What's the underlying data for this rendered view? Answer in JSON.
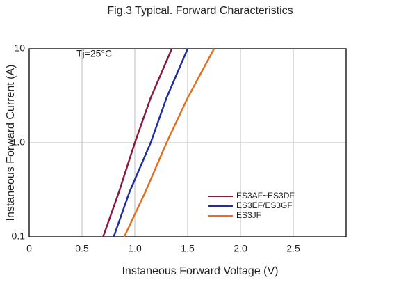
{
  "chart_data": {
    "type": "line",
    "title": "Fig.3 Typical. Forward Characteristics",
    "x_label": "Instaneous Forward Voltage (V)",
    "y_label": "Instaneous Forward Current (A)",
    "annotation": "Tj=25°C",
    "xlim": [
      0,
      3
    ],
    "xticks": [
      0,
      0.5,
      {
        "value": 1,
        "label": "1.0"
      },
      1.5,
      {
        "value": 2,
        "label": "2.0"
      },
      2.5
    ],
    "ylim": [
      0.1,
      10
    ],
    "yticks": [
      0.1,
      {
        "value": 1,
        "label": "1.0"
      },
      10
    ],
    "ylog": true,
    "grid": true,
    "legend": "lower-right",
    "series": [
      {
        "name": "ES3AF~ES3DF",
        "color": "#8b1a3a",
        "x": [
          0.7,
          0.85,
          1.0,
          1.15,
          1.35
        ],
        "values": [
          0.1,
          0.3,
          1,
          3,
          10
        ]
      },
      {
        "name": "ES3EF/ES3GF",
        "color": "#1f2f9c",
        "x": [
          0.8,
          0.95,
          1.15,
          1.3,
          1.5
        ],
        "values": [
          0.1,
          0.3,
          1,
          3,
          10
        ]
      },
      {
        "name": "ES3JF",
        "color": "#e07020",
        "x": [
          0.9,
          1.1,
          1.3,
          1.5,
          1.75
        ],
        "values": [
          0.1,
          0.3,
          1,
          3,
          10
        ]
      }
    ]
  }
}
